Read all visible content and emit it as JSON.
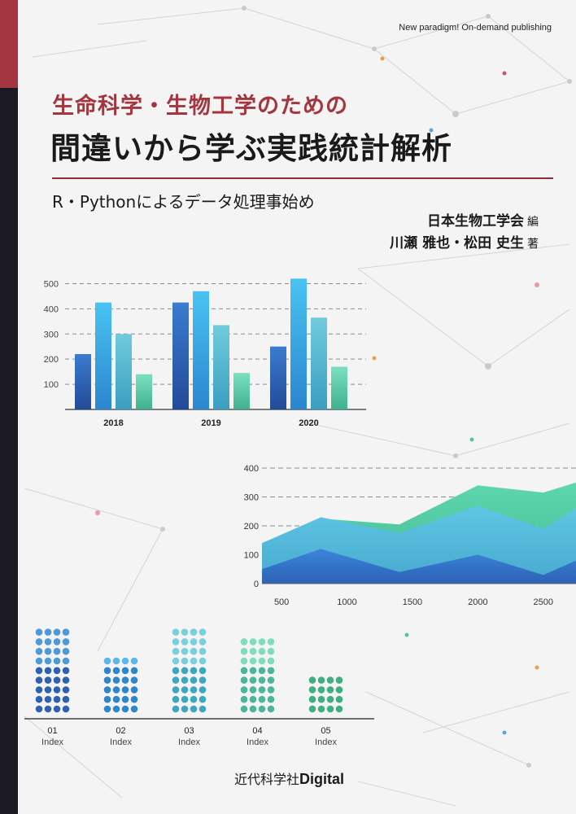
{
  "cover": {
    "tagline": "New paradigm! On-demand publishing",
    "series_line": "生命科学・生物工学のための",
    "title": "間違いから学ぶ実践統計解析",
    "subtitle": "R・Pythonによるデータ処理事始め",
    "editor": "日本生物工学会",
    "editor_suffix": "編",
    "authors": "川瀬 雅也・松田 史生",
    "authors_suffix": "著",
    "publisher_prefix": "近代科学社",
    "publisher_brand": "Digital"
  },
  "colors": {
    "accent_red": "#a3363f",
    "spine_dark": "#1b1a22",
    "bar_blue_dark": "#2458a8",
    "bar_blue_light": "#3aa9e2",
    "bar_teal": "#4fb3cd",
    "bar_green": "#56c4a0"
  },
  "chart_data": [
    {
      "type": "bar",
      "categories": [
        "2018",
        "2019",
        "2020"
      ],
      "series": [
        {
          "values": [
            220,
            425,
            250
          ]
        },
        {
          "values": [
            425,
            470,
            520
          ]
        },
        {
          "values": [
            300,
            335,
            365
          ]
        },
        {
          "values": [
            140,
            145,
            170
          ]
        }
      ],
      "yticks": [
        "100",
        "200",
        "300",
        "400",
        "500"
      ],
      "ylim": [
        0,
        550
      ]
    },
    {
      "type": "area",
      "x": [
        350,
        800,
        1400,
        2000,
        2500,
        2750
      ],
      "xticks": [
        "500",
        "1000",
        "1500",
        "2000",
        "2500"
      ],
      "yticks": [
        "0",
        "100",
        "200",
        "300",
        "400"
      ],
      "ylim": [
        0,
        400
      ],
      "series": [
        {
          "values": [
            50,
            120,
            40,
            100,
            30,
            80
          ]
        },
        {
          "values": [
            140,
            230,
            175,
            270,
            190,
            260
          ]
        },
        {
          "values": [
            140,
            225,
            205,
            340,
            315,
            350
          ]
        }
      ]
    },
    {
      "type": "scatter",
      "categories": [
        "01",
        "02",
        "03",
        "04",
        "05"
      ],
      "category_sublabel": "Index",
      "values": [
        9,
        6,
        9,
        8,
        4
      ],
      "ylim": [
        0,
        9
      ]
    }
  ]
}
